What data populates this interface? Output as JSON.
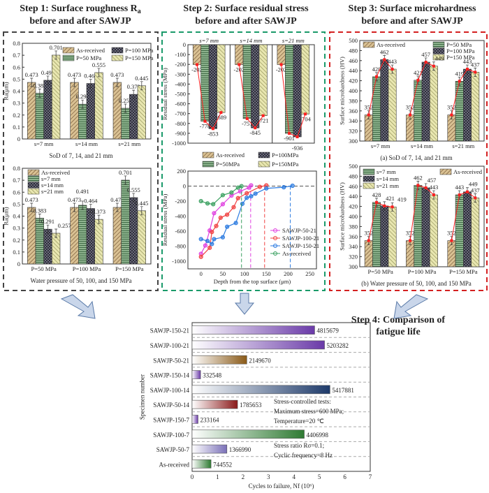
{
  "titles": {
    "step1_line1": "Step 1: Surface roughness R",
    "step1_sub": "a",
    "step1_line2": "before and after SAWJP",
    "step2_line1": "Step 2: Surface residual stress",
    "step2_line2": "before and after SAWJP",
    "step3_line1": "Step 3: Surface microhardness",
    "step3_line2": "before and after SAWJP",
    "step4_line1": "Step 4: Comparison of",
    "step4_line2": "fatigue life"
  },
  "colors": {
    "step1_frame": "#444444",
    "step2_frame": "#1a9a6a",
    "step3_frame": "#d42020",
    "arrow": "#c9d6ea",
    "trend_line": "#ff2020"
  },
  "chart_data": [
    {
      "id": "c1a",
      "type": "bar",
      "ylabel": "Ra(μm)",
      "ylim": [
        0,
        0.8
      ],
      "yticks": [
        0,
        0.1,
        0.2,
        0.3,
        0.4,
        0.5,
        0.6,
        0.7,
        0.8
      ],
      "categories": [
        "s=7 mm",
        "s=14 mm",
        "s=21 mm"
      ],
      "caption": "SoD of 7, 14, and 21 mm",
      "series": [
        {
          "name": "As-received",
          "values": [
            0.473,
            0.473,
            0.473
          ],
          "pattern": "as-received"
        },
        {
          "name": "P=50 MPa",
          "values": [
            0.383,
            0.291,
            0.257
          ],
          "pattern": "p50"
        },
        {
          "name": "P=100 MPa",
          "values": [
            0.491,
            0.464,
            0.373
          ],
          "pattern": "p100"
        },
        {
          "name": "P=150 MPa",
          "values": [
            0.701,
            0.555,
            0.445
          ],
          "pattern": "p150"
        }
      ],
      "value_labels": true,
      "error_bars": true,
      "legend": "top-right"
    },
    {
      "id": "c1b",
      "type": "bar",
      "ylabel": "Ra(μm)",
      "ylim": [
        0,
        0.8
      ],
      "yticks": [
        0,
        0.1,
        0.2,
        0.3,
        0.4,
        0.5,
        0.6,
        0.7,
        0.8
      ],
      "categories": [
        "P=50 MPa",
        "P=100 MPa",
        "P=150 MPa"
      ],
      "caption": "Water pressure of 50, 100, and 150 MPa",
      "series": [
        {
          "name": "As-received",
          "values": [
            0.473,
            0.473,
            0.473
          ],
          "pattern": "as-received"
        },
        {
          "name": "s=7 mm",
          "values": [
            0.383,
            0.491,
            0.701
          ],
          "pattern": "p50"
        },
        {
          "name": "s=14 mm",
          "values": [
            0.291,
            0.464,
            0.555
          ],
          "pattern": "p100"
        },
        {
          "name": "s=21 mm",
          "values": [
            0.257,
            0.373,
            0.445
          ],
          "pattern": "p150"
        }
      ],
      "value_labels": true,
      "error_bars": true,
      "legend": "top-left"
    },
    {
      "id": "c2a",
      "type": "bar",
      "ylabel": "Residual stress (MPa)",
      "ylim": [
        -1000,
        0
      ],
      "yticks": [
        0,
        -100,
        -200,
        -300,
        -400,
        -500,
        -600,
        -700,
        -800,
        -900,
        -1000
      ],
      "categories": [
        "s=7 mm",
        "s=14 mm",
        "s=21 mm"
      ],
      "series": [
        {
          "name": "As-received",
          "values": [
            -202,
            -202,
            -202
          ],
          "pattern": "as-received"
        },
        {
          "name": "P=50MPa",
          "values": [
            -778,
            -751,
            -901
          ],
          "pattern": "p50"
        },
        {
          "name": "P=100MPa",
          "values": [
            -853,
            -845,
            -936
          ],
          "pattern": "p100"
        },
        {
          "name": "P=150MPa",
          "values": [
            -689,
            -721,
            -704
          ],
          "pattern": "p150"
        }
      ],
      "value_labels": true,
      "trend_line": true,
      "legend": "bottom"
    },
    {
      "id": "c2b",
      "type": "line",
      "xlabel": "Depth from the top surface (μm)",
      "ylabel": "Residual stress (MPa)",
      "xlim": [
        -30,
        265
      ],
      "ylim": [
        -1100,
        200
      ],
      "xticks": [
        0,
        50,
        100,
        150,
        200,
        250
      ],
      "yticks": [
        200,
        0,
        -200,
        -400,
        -600,
        -800,
        -1000
      ],
      "legend": "bottom-right",
      "series": [
        {
          "name": "SAWJP-50-21",
          "color": "#e040e0",
          "marker": "circle",
          "depth_limit": 114,
          "x": [
            0,
            10,
            20,
            30,
            50,
            70,
            90,
            110,
            115
          ],
          "y": [
            -900,
            -790,
            -590,
            -360,
            -240,
            -125,
            -70,
            -20,
            10
          ]
        },
        {
          "name": "SAWJP-100-21",
          "color": "#f04040",
          "marker": "triangle",
          "depth_limit": 146,
          "x": [
            0,
            20,
            25,
            35,
            45,
            60,
            75,
            85,
            105,
            135,
            150
          ],
          "y": [
            -940,
            -820,
            -610,
            -530,
            -420,
            -380,
            -280,
            -160,
            -95,
            -10,
            10
          ]
        },
        {
          "name": "SAWJP-150-21",
          "color": "#2a7ae0",
          "marker": "circle",
          "depth_limit": 205,
          "x": [
            0,
            15,
            25,
            30,
            50,
            60,
            80,
            95,
            105,
            115,
            125,
            150,
            190,
            210
          ],
          "y": [
            -705,
            -730,
            -770,
            -705,
            -680,
            -540,
            -490,
            -235,
            -155,
            -135,
            -100,
            -30,
            -15,
            5
          ]
        },
        {
          "name": "As-received",
          "color": "#3aa060",
          "marker": "square",
          "depth_limit": 93,
          "x": [
            0,
            15,
            28,
            50,
            70,
            85,
            93
          ],
          "y": [
            -200,
            -230,
            -240,
            -120,
            -85,
            -20,
            0
          ]
        }
      ]
    },
    {
      "id": "c3a",
      "type": "bar",
      "ylabel": "Surface microhardness (HV)",
      "ylim": [
        300,
        500
      ],
      "yticks": [
        300,
        320,
        340,
        360,
        380,
        400,
        420,
        440,
        460,
        480,
        500
      ],
      "categories": [
        "s=7 mm",
        "s=14 mm",
        "s=21 mm"
      ],
      "caption": "(a) SoD of 7, 14, and 21 mm",
      "series": [
        {
          "name": "As-received",
          "values": [
            352,
            352,
            352
          ],
          "pattern": "as-received"
        },
        {
          "name": "P=50 MPa",
          "values": [
            428,
            421,
            419
          ],
          "pattern": "p50"
        },
        {
          "name": "P=100 MPa",
          "values": [
            462,
            457,
            443
          ],
          "pattern": "p100"
        },
        {
          "name": "P=150 MPa",
          "values": [
            443,
            449,
            437
          ],
          "pattern": "p150"
        }
      ],
      "value_labels": true,
      "error_bars": true,
      "trend_line": true,
      "legend": "top"
    },
    {
      "id": "c3b",
      "type": "bar",
      "ylabel": "Surface microhardness (HV)",
      "ylim": [
        300,
        500
      ],
      "yticks": [
        300,
        320,
        340,
        360,
        380,
        400,
        420,
        440,
        460,
        480,
        500
      ],
      "categories": [
        "P=50 MPa",
        "P=100 MPa",
        "P=150 MPa"
      ],
      "caption": "(b) Water pressure of 50, 100, and 150 MPa",
      "series": [
        {
          "name": "As-received",
          "values": [
            352,
            352,
            352
          ],
          "pattern": "as-received"
        },
        {
          "name": "s=7 mm",
          "values": [
            428,
            462,
            443
          ],
          "pattern": "p50"
        },
        {
          "name": "s=14 mm",
          "values": [
            421,
            457,
            449
          ],
          "pattern": "p100"
        },
        {
          "name": "s=21 mm",
          "values": [
            419,
            443,
            437
          ],
          "pattern": "p150"
        }
      ],
      "value_labels": true,
      "error_bars": true,
      "trend_line": true,
      "legend": "top"
    },
    {
      "id": "c4",
      "type": "bar",
      "orientation": "horizontal",
      "xlabel": "Cycles to failure, Nf (10⁶)",
      "ylabel": "Specimen number",
      "xlim": [
        0,
        7
      ],
      "xticks": [
        0,
        1,
        2,
        3,
        4,
        5,
        6,
        7
      ],
      "categories": [
        "SAWJP-150-21",
        "SAWJP-100-21",
        "SAWJP-50-21",
        "SAWJP-150-14",
        "SAWJP-100-14",
        "SAWJP-50-14",
        "SAWJP-150-7",
        "SAWJP-100-7",
        "SAWJP-50-7",
        "As-received"
      ],
      "values": [
        4815679,
        5203282,
        2149670,
        332548,
        5417881,
        1785653,
        233164,
        4406998,
        1366990,
        744552
      ],
      "labels": [
        "4815679",
        "5203282",
        "2149670",
        "332548",
        "5417881",
        "1785653",
        "233164",
        "4406998",
        "1366990",
        "744552"
      ],
      "bar_colors": [
        "#6a3aa8",
        "#6a3aa8",
        "#8a5a18",
        "#6a3aa8",
        "#1e3a6a",
        "#8a1a1a",
        "#6a3aa8",
        "#2e7a32",
        "#7a70b8",
        "#2e7a32"
      ],
      "annotations": [
        "Stress-controlled tests:",
        "Maximum stress=600 MPa;",
        "Temperature=20 ℃",
        "Stress ratio Rσ=0.1;",
        "Cyclic frequency=8 Hz"
      ]
    }
  ]
}
